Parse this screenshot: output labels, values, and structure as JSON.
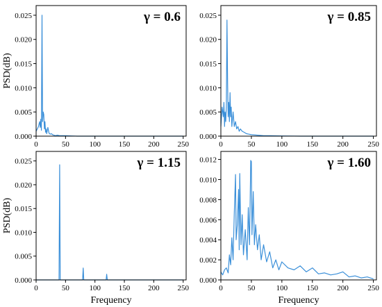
{
  "chart_data": [
    {
      "type": "line",
      "annotation": "γ = 0.6",
      "ylabel": "PSD(dB)",
      "xlabel": "",
      "xlim": [
        0,
        255
      ],
      "ylim": [
        0,
        0.027
      ],
      "xticks": [
        "0",
        "50",
        "100",
        "150",
        "200",
        "250"
      ],
      "yticks": [
        "0.000",
        "0.005",
        "0.010",
        "0.015",
        "0.020",
        "0.025"
      ],
      "series": [
        {
          "x": [
            0,
            2,
            4,
            5,
            6,
            7,
            8,
            9,
            10,
            11,
            12,
            13,
            14,
            15,
            16,
            17,
            18,
            19,
            20,
            22,
            24,
            26,
            28,
            30,
            33,
            36,
            40,
            45,
            50,
            60,
            70,
            80,
            100,
            130,
            160,
            200,
            250
          ],
          "y": [
            0.001,
            0.0015,
            0.002,
            0.0025,
            0.003,
            0.0018,
            0.0035,
            0.0012,
            0.025,
            0.003,
            0.005,
            0.0045,
            0.0015,
            0.003,
            0.0008,
            0.0015,
            0.0005,
            0.0012,
            0.0018,
            0.0006,
            0.0004,
            0.0005,
            0.0003,
            0.0002,
            0.0001,
            0.0002,
            0.0001,
            0.0001,
            0.0001,
            5e-05,
            0.0,
            0.0,
            0.0,
            0.0,
            0.0,
            0.0,
            0.0
          ]
        }
      ]
    },
    {
      "type": "line",
      "annotation": "γ = 0.85",
      "ylabel": "",
      "xlabel": "",
      "xlim": [
        0,
        255
      ],
      "ylim": [
        0,
        0.027
      ],
      "xticks": [
        "0",
        "50",
        "100",
        "150",
        "200",
        "250"
      ],
      "yticks": [
        "0.000",
        "0.005",
        "0.010",
        "0.015",
        "0.020",
        "0.025"
      ],
      "series": [
        {
          "x": [
            0,
            2,
            4,
            5,
            6,
            7,
            8,
            9,
            10,
            11,
            12,
            13,
            14,
            15,
            16,
            17,
            18,
            20,
            22,
            24,
            26,
            28,
            30,
            32,
            35,
            38,
            42,
            46,
            50,
            60,
            70,
            80,
            100,
            130,
            160,
            200,
            250
          ],
          "y": [
            0.002,
            0.006,
            0.004,
            0.007,
            0.002,
            0.005,
            0.003,
            0.006,
            0.024,
            0.011,
            0.004,
            0.007,
            0.003,
            0.009,
            0.004,
            0.006,
            0.002,
            0.005,
            0.002,
            0.003,
            0.0015,
            0.002,
            0.001,
            0.0015,
            0.001,
            0.0008,
            0.0005,
            0.0004,
            0.0003,
            0.0002,
            0.0001,
            0.0001,
            5e-05,
            0.0,
            0.0,
            0.0,
            0.0
          ]
        }
      ]
    },
    {
      "type": "line",
      "annotation": "γ = 1.15",
      "ylabel": "PSD(dB)",
      "xlabel": "Frequency",
      "xlim": [
        0,
        255
      ],
      "ylim": [
        0,
        0.027
      ],
      "xticks": [
        "0",
        "50",
        "100",
        "150",
        "200",
        "250"
      ],
      "yticks": [
        "0.000",
        "0.005",
        "0.010",
        "0.015",
        "0.020",
        "0.025"
      ],
      "series": [
        {
          "x": [
            0,
            39,
            40,
            41,
            79,
            80,
            81,
            119,
            120,
            121,
            250
          ],
          "y": [
            0.0,
            0.0,
            0.0242,
            0.0,
            0.0,
            0.0025,
            0.0,
            0.0,
            0.0012,
            0.0,
            0.0
          ]
        }
      ]
    },
    {
      "type": "line",
      "annotation": "γ = 1.60",
      "ylabel": "",
      "xlabel": "Frequency",
      "xlim": [
        0,
        255
      ],
      "ylim": [
        0,
        0.0128
      ],
      "xticks": [
        "0",
        "50",
        "100",
        "150",
        "200",
        "250"
      ],
      "yticks": [
        "0.000",
        "0.002",
        "0.004",
        "0.006",
        "0.008",
        "0.010",
        "0.012"
      ],
      "series": [
        {
          "x": [
            0,
            3,
            6,
            9,
            12,
            14,
            16,
            18,
            20,
            22,
            24,
            25,
            27,
            29,
            30,
            31,
            33,
            35,
            37,
            40,
            43,
            45,
            47,
            49,
            50,
            51,
            53,
            55,
            57,
            60,
            63,
            66,
            70,
            75,
            80,
            85,
            90,
            95,
            100,
            110,
            120,
            130,
            140,
            150,
            160,
            170,
            180,
            190,
            200,
            210,
            220,
            230,
            240,
            250
          ],
          "y": [
            0.0008,
            0.0005,
            0.001,
            0.0012,
            0.0007,
            0.0025,
            0.0015,
            0.0042,
            0.002,
            0.0066,
            0.0105,
            0.004,
            0.0055,
            0.009,
            0.003,
            0.0106,
            0.0035,
            0.0065,
            0.0025,
            0.005,
            0.002,
            0.0072,
            0.0035,
            0.0119,
            0.0118,
            0.0045,
            0.0088,
            0.0035,
            0.0055,
            0.003,
            0.0045,
            0.002,
            0.0035,
            0.0018,
            0.0028,
            0.0012,
            0.002,
            0.001,
            0.0018,
            0.0012,
            0.001,
            0.0014,
            0.0008,
            0.0012,
            0.0006,
            0.0007,
            0.0005,
            0.0006,
            0.0008,
            0.0003,
            0.0004,
            0.0002,
            0.0003,
            0.0001
          ]
        }
      ]
    }
  ]
}
